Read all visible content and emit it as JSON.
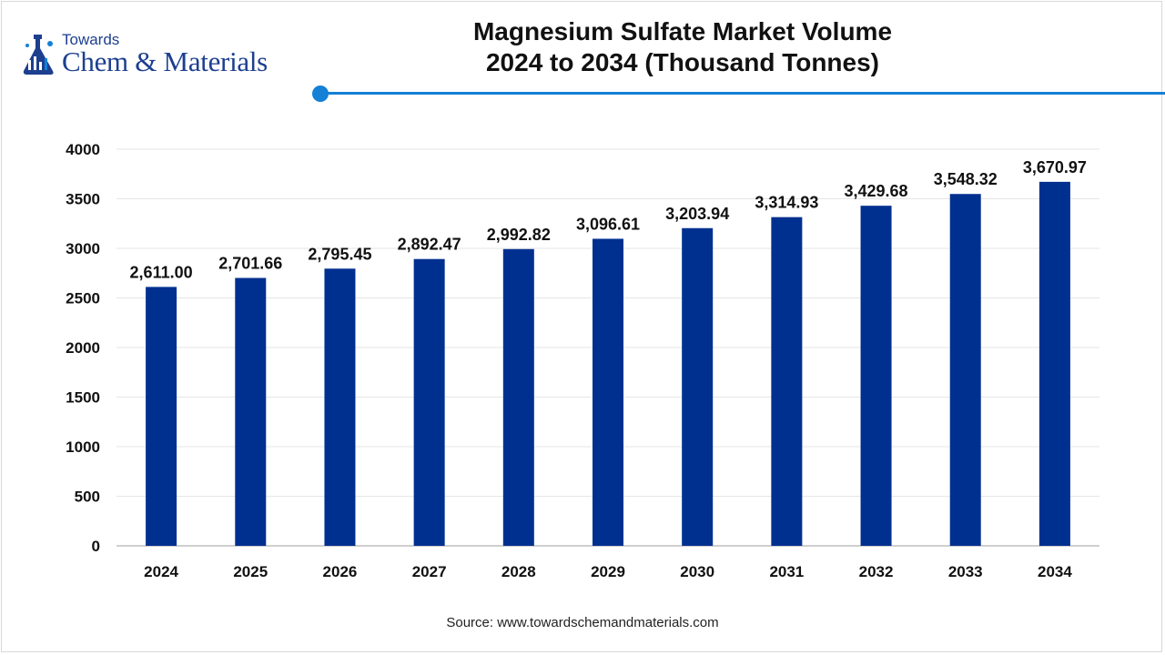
{
  "brand": {
    "line1": "Towards",
    "line2": "Chem & Materials"
  },
  "title": {
    "line1": "Magnesium Sulfate Market Volume",
    "line2": "2024 to 2034 (Thousand Tonnes)"
  },
  "source": "Source: www.towardschemandmaterials.com",
  "colors": {
    "bar": "#00308f",
    "accent": "#1480d6",
    "brand": "#1d3f8f"
  },
  "chart_data": {
    "type": "bar",
    "categories": [
      "2024",
      "2025",
      "2026",
      "2027",
      "2028",
      "2029",
      "2030",
      "2031",
      "2032",
      "2033",
      "2034"
    ],
    "values": [
      2611.0,
      2701.66,
      2795.45,
      2892.47,
      2992.82,
      3096.61,
      3203.94,
      3314.93,
      3429.68,
      3548.32,
      3670.97
    ],
    "value_labels": [
      "2,611.00",
      "2,701.66",
      "2,795.45",
      "2,892.47",
      "2,992.82",
      "3,096.61",
      "3,203.94",
      "3,314.93",
      "3,429.68",
      "3,548.32",
      "3,670.97"
    ],
    "yticks": [
      0,
      500,
      1000,
      1500,
      2000,
      2500,
      3000,
      3500,
      4000
    ],
    "ylim": [
      0,
      4000
    ],
    "grid": true,
    "legend": false
  }
}
